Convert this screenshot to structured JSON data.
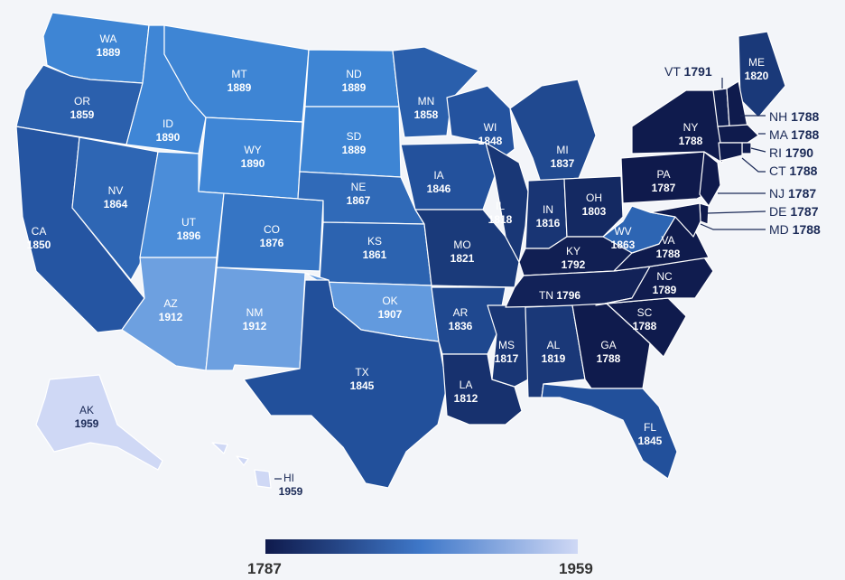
{
  "map": {
    "type": "choropleth",
    "colorScale": {
      "min": 1787,
      "max": 1959,
      "minColor": "#0f1a4c",
      "maxColor": "#cfd8f5"
    }
  },
  "legend": {
    "min_label": "1787",
    "max_label": "1959"
  },
  "states": [
    {
      "abbr": "WA",
      "year": 1889
    },
    {
      "abbr": "OR",
      "year": 1859
    },
    {
      "abbr": "CA",
      "year": 1850
    },
    {
      "abbr": "ID",
      "year": 1890
    },
    {
      "abbr": "NV",
      "year": 1864
    },
    {
      "abbr": "MT",
      "year": 1889
    },
    {
      "abbr": "WY",
      "year": 1890
    },
    {
      "abbr": "UT",
      "year": 1896
    },
    {
      "abbr": "AZ",
      "year": 1912
    },
    {
      "abbr": "CO",
      "year": 1876
    },
    {
      "abbr": "NM",
      "year": 1912
    },
    {
      "abbr": "ND",
      "year": 1889
    },
    {
      "abbr": "SD",
      "year": 1889
    },
    {
      "abbr": "NE",
      "year": 1867
    },
    {
      "abbr": "KS",
      "year": 1861
    },
    {
      "abbr": "OK",
      "year": 1907
    },
    {
      "abbr": "TX",
      "year": 1845
    },
    {
      "abbr": "MN",
      "year": 1858
    },
    {
      "abbr": "IA",
      "year": 1846
    },
    {
      "abbr": "MO",
      "year": 1821
    },
    {
      "abbr": "AR",
      "year": 1836
    },
    {
      "abbr": "LA",
      "year": 1812
    },
    {
      "abbr": "WI",
      "year": 1848
    },
    {
      "abbr": "IL",
      "year": 1818
    },
    {
      "abbr": "MS",
      "year": 1817
    },
    {
      "abbr": "MI",
      "year": 1837
    },
    {
      "abbr": "IN",
      "year": 1816
    },
    {
      "abbr": "OH",
      "year": 1803
    },
    {
      "abbr": "KY",
      "year": 1792
    },
    {
      "abbr": "TN",
      "year": 1796
    },
    {
      "abbr": "AL",
      "year": 1819
    },
    {
      "abbr": "GA",
      "year": 1788
    },
    {
      "abbr": "FL",
      "year": 1845
    },
    {
      "abbr": "SC",
      "year": 1788
    },
    {
      "abbr": "NC",
      "year": 1789
    },
    {
      "abbr": "VA",
      "year": 1788
    },
    {
      "abbr": "WV",
      "year": 1863
    },
    {
      "abbr": "PA",
      "year": 1787
    },
    {
      "abbr": "NY",
      "year": 1788
    },
    {
      "abbr": "ME",
      "year": 1820
    },
    {
      "abbr": "AK",
      "year": 1959
    },
    {
      "abbr": "HI",
      "year": 1959
    },
    {
      "abbr": "VT",
      "year": 1791
    },
    {
      "abbr": "NH",
      "year": 1788
    },
    {
      "abbr": "MA",
      "year": 1788
    },
    {
      "abbr": "RI",
      "year": 1790
    },
    {
      "abbr": "CT",
      "year": 1788
    },
    {
      "abbr": "NJ",
      "year": 1787
    },
    {
      "abbr": "DE",
      "year": 1787
    },
    {
      "abbr": "MD",
      "year": 1788
    }
  ]
}
